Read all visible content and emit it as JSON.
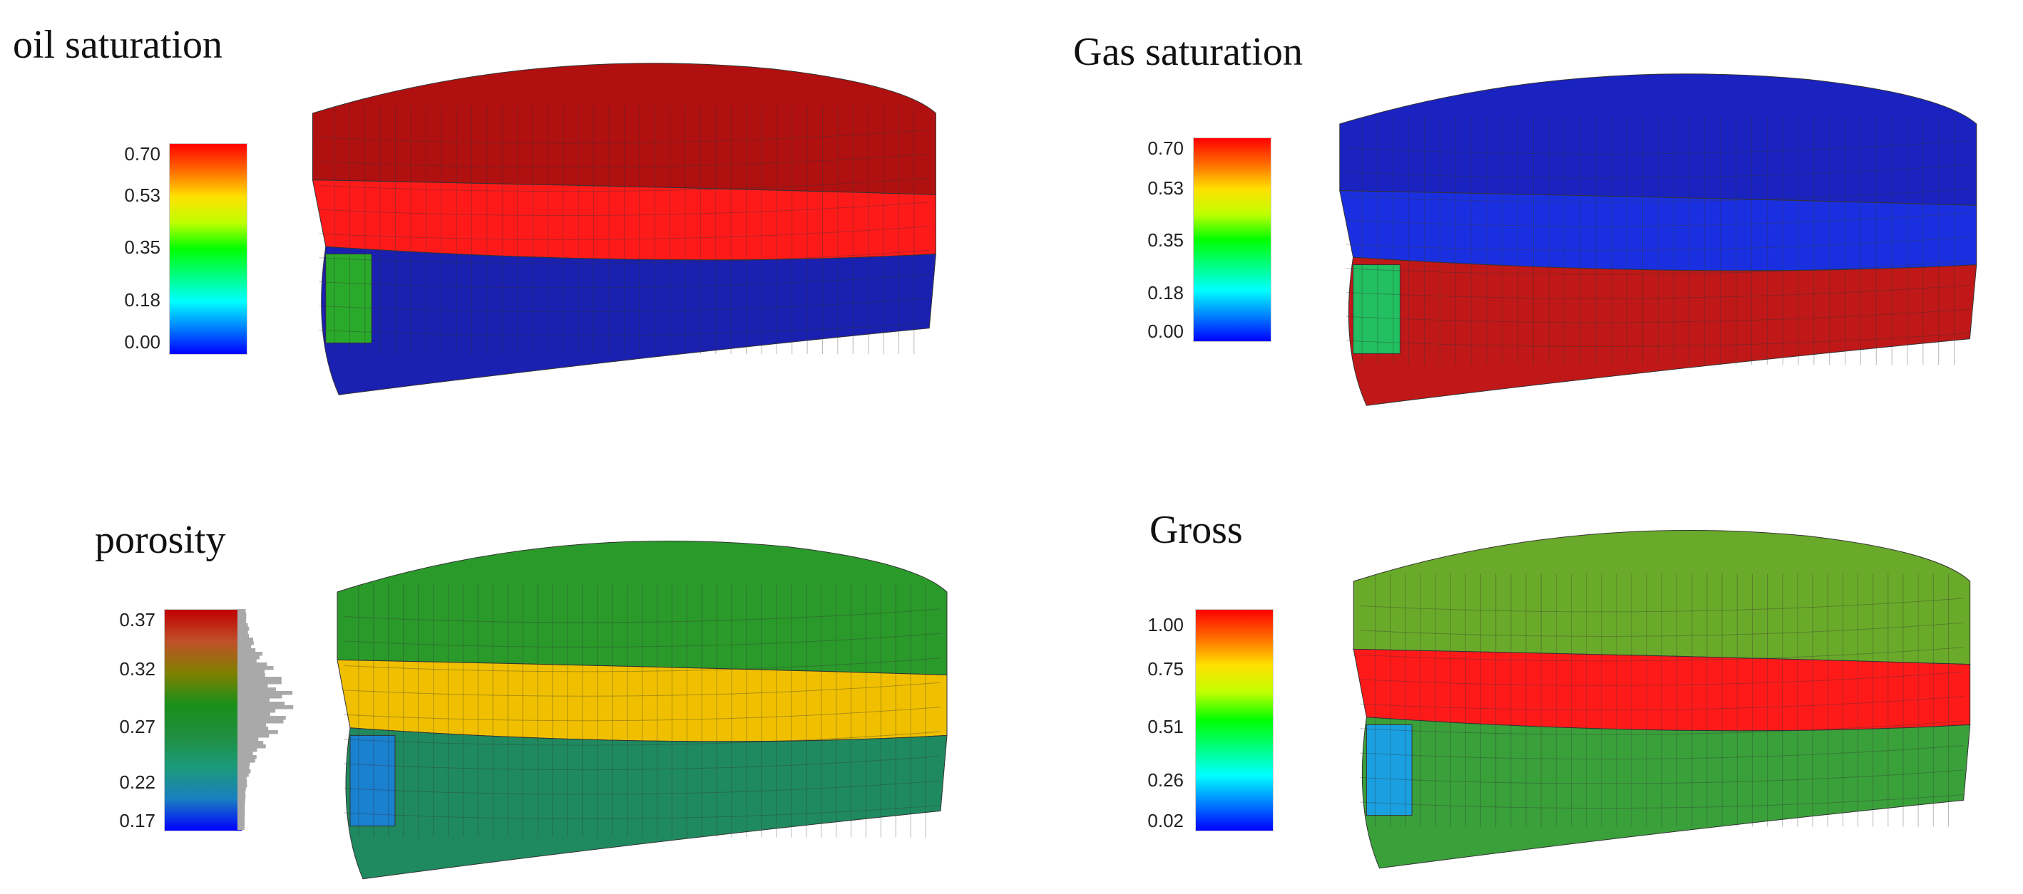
{
  "panels": [
    {
      "id": "oil",
      "title": "oil saturation",
      "ticks": [
        "0.70",
        "0.53",
        "0.35",
        "0.18",
        "0.00"
      ],
      "gradient": [
        "#ff0000",
        "#ff6a00",
        "#ffe000",
        "#bfff00",
        "#00ff00",
        "#00ff80",
        "#00ffff",
        "#0080ff",
        "#0000ff"
      ],
      "has_histogram": false,
      "colors": {
        "top": "#b01010",
        "band": "#ff1a1a",
        "lower": "#1a20b0",
        "block": "#2aaa2a",
        "edge": "#333333"
      }
    },
    {
      "id": "gas",
      "title": "Gas saturation",
      "ticks": [
        "0.70",
        "0.53",
        "0.35",
        "0.18",
        "0.00"
      ],
      "gradient": [
        "#ff0000",
        "#ff6a00",
        "#ffe000",
        "#bfff00",
        "#00ff00",
        "#00ff80",
        "#00ffff",
        "#0080ff",
        "#0000ff"
      ],
      "has_histogram": false,
      "colors": {
        "top": "#1a22c0",
        "band": "#1a30e0",
        "lower": "#c01818",
        "block": "#22c060",
        "edge": "#333333"
      }
    },
    {
      "id": "porosity",
      "title": "porosity",
      "ticks": [
        "0.37",
        "0.32",
        "0.27",
        "0.22",
        "0.17"
      ],
      "gradient": [
        "#c00000",
        "#c0502a",
        "#808000",
        "#1a8f1a",
        "#1f8f3f",
        "#1a9a7a",
        "#1a7fc0",
        "#0000ff"
      ],
      "has_histogram": true,
      "colors": {
        "top": "#2a9a2a",
        "band": "#f0c000",
        "lower": "#1f8a5f",
        "block": "#1a80d0",
        "edge": "#333333"
      }
    },
    {
      "id": "gross",
      "title": "Gross",
      "ticks": [
        "1.00",
        "0.75",
        "0.51",
        "0.26",
        "0.02"
      ],
      "gradient": [
        "#ff0000",
        "#ff6a00",
        "#ffe000",
        "#bfff00",
        "#00ff00",
        "#00ff80",
        "#00ffff",
        "#0080ff",
        "#0000ff"
      ],
      "has_histogram": false,
      "colors": {
        "top": "#6aaa2a",
        "band": "#ff1a1a",
        "lower": "#3aa03a",
        "block": "#1aa0e0",
        "edge": "#333333"
      }
    }
  ]
}
